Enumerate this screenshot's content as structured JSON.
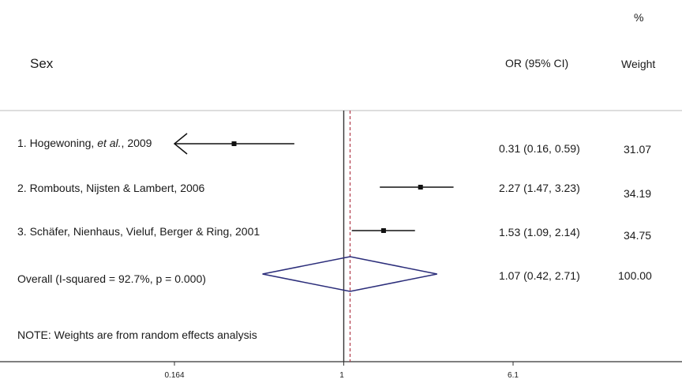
{
  "chart_data": {
    "type": "forest",
    "title": "Sex",
    "header": {
      "effect_label": "OR (95% CI)",
      "weight_label_line1": "%",
      "weight_label_line2": "Weight"
    },
    "x_scale": "log",
    "xlim": [
      0.164,
      6.1
    ],
    "xticks": [
      "0.164",
      "1",
      "6.1"
    ],
    "null_line": 1,
    "overall_line": 1.07,
    "studies": [
      {
        "label_main": "1. Hogewoning, ",
        "label_italic": "et al.",
        "label_end": ", 2009",
        "or": 0.31,
        "lo": 0.16,
        "hi": 0.59,
        "display": "0.31 (0.16, 0.59)",
        "weight": "31.07",
        "truncated_left": true
      },
      {
        "label_main": "2. Rombouts, Nijsten & Lambert, 2006",
        "label_italic": "",
        "label_end": "",
        "or": 2.27,
        "lo": 1.47,
        "hi": 3.23,
        "display": "2.27 (1.47, 3.23)",
        "weight": "34.19",
        "truncated_left": false
      },
      {
        "label_main": "3. Schäfer, Nienhaus, Vieluf, Berger & Ring, 2001",
        "label_italic": "",
        "label_end": "",
        "or": 1.53,
        "lo": 1.09,
        "hi": 2.14,
        "display": "1.53 (1.09, 2.14)",
        "weight": "34.75",
        "truncated_left": false
      }
    ],
    "overall": {
      "label": "Overall (I-squared = 92.7%, p = 0.000)",
      "or": 1.07,
      "lo": 0.42,
      "hi": 2.71,
      "display": "1.07 (0.42, 2.71)",
      "weight": "100.00"
    },
    "note": "NOTE: Weights are from random effects analysis",
    "colors": {
      "diamond": "#2b2d7a",
      "overall_line": "#b03a4a",
      "axis": "#333333",
      "rule": "#bbbbbb"
    }
  }
}
